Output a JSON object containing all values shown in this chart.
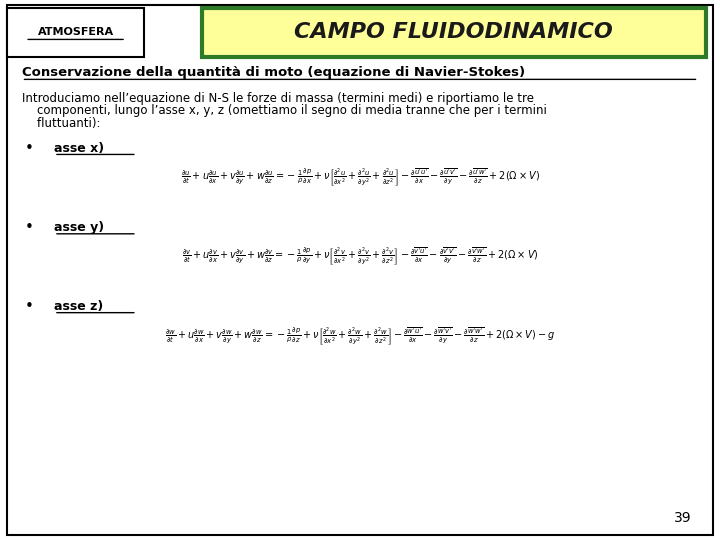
{
  "bg_color": "#ffffff",
  "border_color": "#000000",
  "header_box_color": "#ffff99",
  "header_border_color": "#2d7a27",
  "atmosfera_text": "ATMOSFERA",
  "title_text": "CAMPO FLUIDODINAMICO",
  "subtitle": "Conservazione della quantità di moto (equazione di Navier-Stokes)",
  "intro_line1": "Introduciamo nell’equazione di N-S le forze di massa (termini medi) e riportiamo le tre",
  "intro_line2": "    componenti, lungo l’asse x, y, z (omettiamo il segno di media tranne che per i termini",
  "intro_line3": "    fluttuanti):",
  "eq_x_label": "asse x)",
  "eq_y_label": "asse y)",
  "eq_z_label": "asse z)",
  "eq_x": "$\\frac{\\partial u}{\\partial t}+u\\frac{\\partial u}{\\partial x}+v\\frac{\\partial u}{\\partial y}+w\\frac{\\partial u}{\\partial z}=-\\frac{1}{\\rho}\\frac{\\partial p}{\\partial x}+\\nu\\left[\\frac{\\partial^2 u}{\\partial x^2}+\\frac{\\partial^2 u}{\\partial y^2}+\\frac{\\partial^2 u}{\\partial z^2}\\right]-\\frac{\\partial\\overline{u'u'}}{\\partial x}-\\frac{\\partial\\overline{u'v'}}{\\partial y}-\\frac{\\partial\\overline{u'w'}}{\\partial z}+2(\\Omega\\times V)$",
  "eq_y": "$\\frac{\\partial v}{\\partial t}+u\\frac{\\partial v}{\\partial x}+v\\frac{\\partial v}{\\partial y}+w\\frac{\\partial v}{\\partial z}=-\\frac{1}{\\rho}\\frac{\\partial p}{\\partial y}+\\nu\\left[\\frac{\\partial^2 v}{\\partial x^2}+\\frac{\\partial^2 v}{\\partial y^2}+\\frac{\\partial^2 v}{\\partial z^2}\\right]-\\frac{\\partial\\overline{v'u'}}{\\partial x}-\\frac{\\partial\\overline{v'v'}}{\\partial y}-\\frac{\\partial\\overline{v'w'}}{\\partial z}+2(\\Omega\\times V)$",
  "eq_z": "$\\frac{\\partial w}{\\partial t}+u\\frac{\\partial w}{\\partial x}+v\\frac{\\partial w}{\\partial y}+w\\frac{\\partial w}{\\partial z}=-\\frac{1}{\\rho}\\frac{\\partial p}{\\partial z}+\\nu\\left[\\frac{\\partial^2 w}{\\partial x^2}+\\frac{\\partial^2 w}{\\partial y^2}+\\frac{\\partial^2 w}{\\partial z^2}\\right]-\\frac{\\partial\\overline{w'u'}}{\\partial x}-\\frac{\\partial\\overline{w'v'}}{\\partial y}-\\frac{\\partial\\overline{w'w'}}{\\partial z}+2(\\Omega\\times V)-g$",
  "page_number": "39",
  "text_color": "#000000",
  "title_color": "#1a1a1a"
}
